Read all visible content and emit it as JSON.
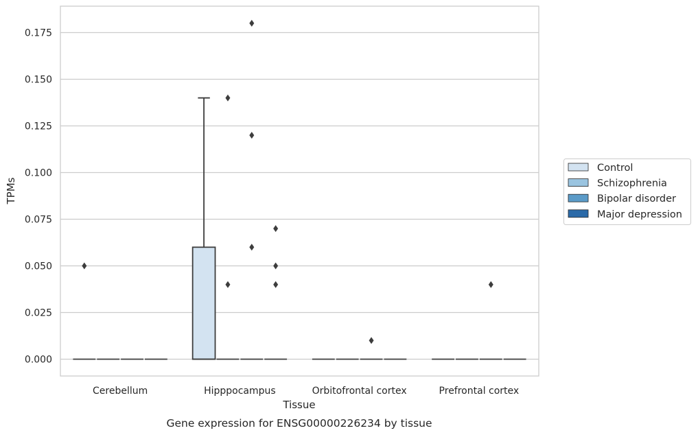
{
  "caption": "Gene expression for ENSG00000226234 by tissue",
  "chart_data": {
    "type": "box",
    "title": "",
    "xlabel": "Tissue",
    "ylabel": "TPMs",
    "categories": [
      "Cerebellum",
      "Hipppocampus",
      "Orbitofrontal cortex",
      "Prefrontal cortex"
    ],
    "ylim": [
      -0.0175,
      0.1895
    ],
    "yticks": [
      0.0,
      0.025,
      0.05,
      0.075,
      0.1,
      0.125,
      0.15,
      0.175
    ],
    "ytick_labels": [
      "0.000",
      "0.025",
      "0.050",
      "0.075",
      "0.100",
      "0.125",
      "0.150",
      "0.175"
    ],
    "grid": true,
    "legend_position": "right",
    "legend": [
      "Control",
      "Schizophrenia",
      "Bipolar disorder",
      "Major depression"
    ],
    "series": [
      {
        "name": "Control",
        "color": "#d3e3f1",
        "boxes": [
          {
            "category": "Cerebellum",
            "q1": 0,
            "median": 0,
            "q3": 0,
            "whisker_low": 0,
            "whisker_high": 0,
            "outliers": [
              0.05
            ]
          },
          {
            "category": "Hipppocampus",
            "q1": 0,
            "median": 0,
            "q3": 0.06,
            "whisker_low": 0,
            "whisker_high": 0.14,
            "outliers": []
          },
          {
            "category": "Orbitofrontal cortex",
            "q1": 0,
            "median": 0,
            "q3": 0,
            "whisker_low": 0,
            "whisker_high": 0,
            "outliers": []
          },
          {
            "category": "Prefrontal cortex",
            "q1": 0,
            "median": 0,
            "q3": 0,
            "whisker_low": 0,
            "whisker_high": 0,
            "outliers": []
          }
        ]
      },
      {
        "name": "Schizophrenia",
        "color": "#9ac4e0",
        "boxes": [
          {
            "category": "Cerebellum",
            "q1": 0,
            "median": 0,
            "q3": 0,
            "whisker_low": 0,
            "whisker_high": 0,
            "outliers": []
          },
          {
            "category": "Hipppocampus",
            "q1": 0,
            "median": 0,
            "q3": 0,
            "whisker_low": 0,
            "whisker_high": 0,
            "outliers": [
              0.14,
              0.04
            ]
          },
          {
            "category": "Orbitofrontal cortex",
            "q1": 0,
            "median": 0,
            "q3": 0,
            "whisker_low": 0,
            "whisker_high": 0,
            "outliers": []
          },
          {
            "category": "Prefrontal cortex",
            "q1": 0,
            "median": 0,
            "q3": 0,
            "whisker_low": 0,
            "whisker_high": 0,
            "outliers": []
          }
        ]
      },
      {
        "name": "Bipolar disorder",
        "color": "#5b9bc8",
        "boxes": [
          {
            "category": "Cerebellum",
            "q1": 0,
            "median": 0,
            "q3": 0,
            "whisker_low": 0,
            "whisker_high": 0,
            "outliers": []
          },
          {
            "category": "Hipppocampus",
            "q1": 0,
            "median": 0,
            "q3": 0,
            "whisker_low": 0,
            "whisker_high": 0,
            "outliers": [
              0.18,
              0.12,
              0.06
            ]
          },
          {
            "category": "Orbitofrontal cortex",
            "q1": 0,
            "median": 0,
            "q3": 0,
            "whisker_low": 0,
            "whisker_high": 0,
            "outliers": [
              0.01
            ]
          },
          {
            "category": "Prefrontal cortex",
            "q1": 0,
            "median": 0,
            "q3": 0,
            "whisker_low": 0,
            "whisker_high": 0,
            "outliers": [
              0.04
            ]
          }
        ]
      },
      {
        "name": "Major depression",
        "color": "#2b6aa8",
        "boxes": [
          {
            "category": "Cerebellum",
            "q1": 0,
            "median": 0,
            "q3": 0,
            "whisker_low": 0,
            "whisker_high": 0,
            "outliers": []
          },
          {
            "category": "Hipppocampus",
            "q1": 0,
            "median": 0,
            "q3": 0,
            "whisker_low": 0,
            "whisker_high": 0,
            "outliers": [
              0.07,
              0.05,
              0.04
            ]
          },
          {
            "category": "Orbitofrontal cortex",
            "q1": 0,
            "median": 0,
            "q3": 0,
            "whisker_low": 0,
            "whisker_high": 0,
            "outliers": []
          },
          {
            "category": "Prefrontal cortex",
            "q1": 0,
            "median": 0,
            "q3": 0,
            "whisker_low": 0,
            "whisker_high": 0,
            "outliers": []
          }
        ]
      }
    ]
  }
}
